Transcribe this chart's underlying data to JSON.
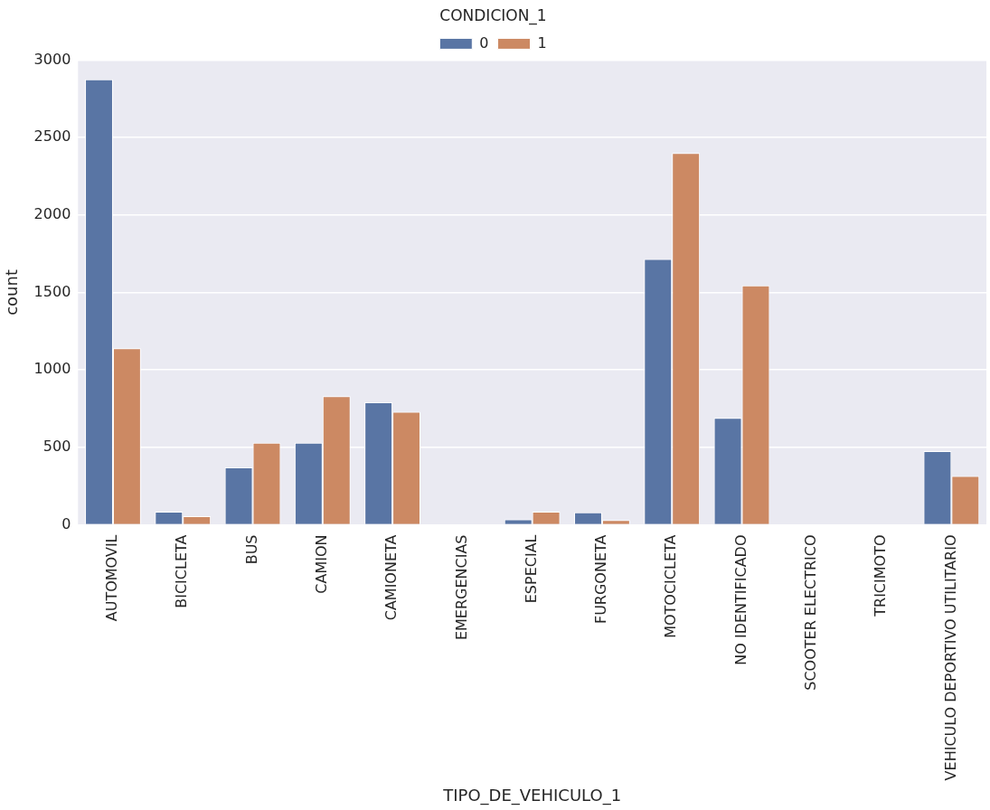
{
  "chart_data": {
    "type": "bar",
    "xlabel": "TIPO_DE_VEHICULO_1",
    "ylabel": "count",
    "legend_title": "CONDICION_1",
    "categories": [
      "AUTOMOVIL",
      "BICICLETA",
      "BUS",
      "CAMION",
      "CAMIONETA",
      "EMERGENCIAS",
      "ESPECIAL",
      "FURGONETA",
      "MOTOCICLETA",
      "NO IDENTIFICADO",
      "SCOOTER ELECTRICO",
      "TRICIMOTO",
      "VEHICULO DEPORTIVO UTILITARIO"
    ],
    "series": [
      {
        "name": "0",
        "color": "#5975a4",
        "values": [
          2875,
          85,
          370,
          530,
          790,
          null,
          35,
          80,
          1715,
          690,
          null,
          null,
          475
        ]
      },
      {
        "name": "1",
        "color": "#cc8963",
        "values": [
          1140,
          55,
          530,
          830,
          730,
          null,
          85,
          30,
          2400,
          1545,
          null,
          null,
          315
        ]
      }
    ],
    "ylim": [
      0,
      3000
    ],
    "yticks": [
      0,
      500,
      1000,
      1500,
      2000,
      2500,
      3000
    ],
    "grid": "y",
    "legend": "top"
  }
}
